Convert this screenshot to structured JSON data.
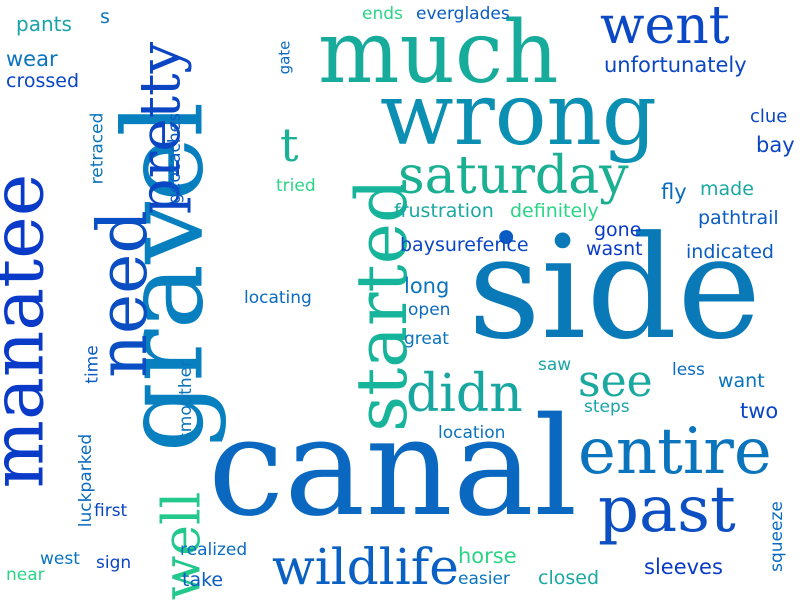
{
  "words": {
    "side": "side",
    "canal": "canal",
    "gravel": "gravel",
    "much": "much",
    "wrong": "wrong",
    "manatee": "manatee",
    "need": "need",
    "started": "started",
    "pretty": "pretty",
    "entire": "entire",
    "went": "went",
    "past": "past",
    "saturday": "saturday",
    "didn": "didn",
    "wildlife": "wildlife",
    "see": "see",
    "well": "well",
    "t": "t",
    "dot": "•",
    "unfortunately": "unfortunately",
    "everglades": "everglades",
    "ends": "ends",
    "pants": "pants",
    "s": "s",
    "wear": "wear",
    "crossed": "crossed",
    "gate": "gate",
    "retraced": "retraced",
    "geocaches": "geocaches",
    "clue": "clue",
    "bay": "bay",
    "tried": "tried",
    "fly": "fly",
    "made": "made",
    "frustration": "frustration",
    "definitely": "definitely",
    "pathtrail": "pathtrail",
    "gone": "gone",
    "baysurefence": "baysurefence",
    "wasnt": "wasnt",
    "indicated": "indicated",
    "saw": "saw",
    "locating": "locating",
    "long": "long",
    "open": "open",
    "great": "great",
    "time": "time",
    "smoother": "smoother",
    "less": "less",
    "want": "want",
    "steps": "steps",
    "two": "two",
    "location": "location",
    "luckparked": "luckparked",
    "first": "first",
    "realized": "realized",
    "horse": "horse",
    "squeeze": "squeeze",
    "west": "west",
    "sign": "sign",
    "near": "near",
    "take": "take",
    "easier": "easier",
    "closed": "closed",
    "sleeves": "sleeves"
  }
}
